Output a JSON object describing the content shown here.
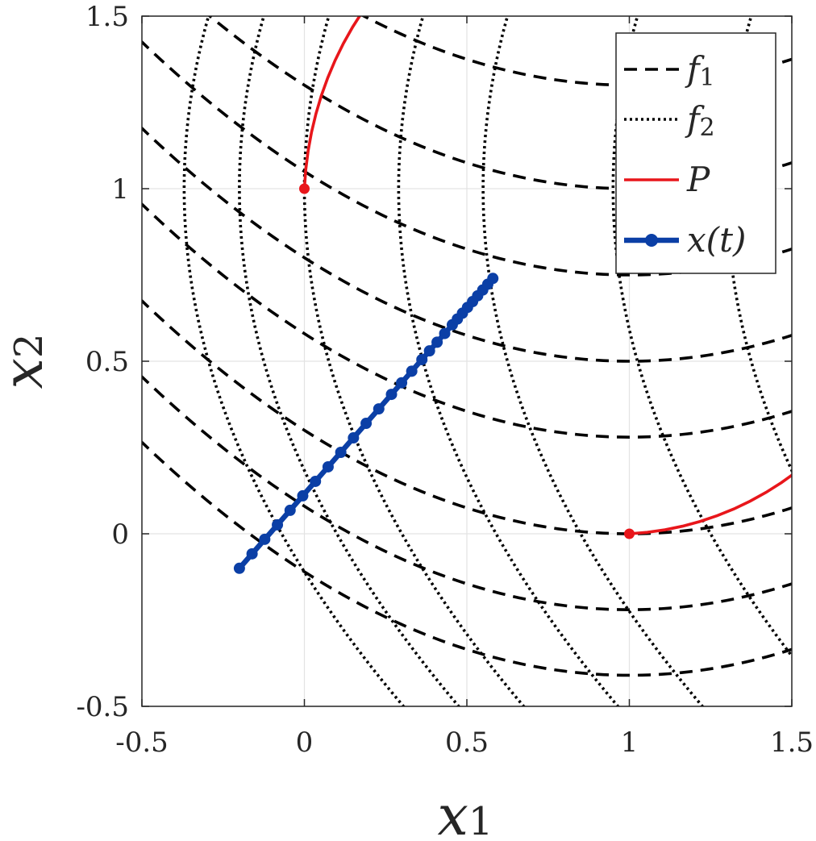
{
  "chart_data": {
    "type": "line",
    "title": "",
    "xlabel": {
      "base": "x",
      "sub": "1"
    },
    "ylabel": {
      "base": "x",
      "sub": "2"
    },
    "xlim": [
      -0.5,
      1.5
    ],
    "ylim": [
      -0.5,
      1.5
    ],
    "grid": true,
    "legend_position": "top-right",
    "x_ticks": [
      -0.5,
      0,
      0.5,
      1,
      1.5
    ],
    "y_ticks": [
      -0.5,
      0,
      0.5,
      1,
      1.5
    ],
    "x_tick_labels": [
      "-0.5",
      "0",
      "0.5",
      "1",
      "1.5"
    ],
    "y_tick_labels": [
      "-0.5",
      "0",
      "0.5",
      "1",
      "1.5"
    ],
    "colors": {
      "f1": "#000000",
      "f2": "#000000",
      "P": "#e8161b",
      "x_t": "#0b3fa6",
      "grid": "#e3e3e3",
      "axis": "#262626"
    },
    "contours": {
      "f1": {
        "center": [
          1,
          0
        ],
        "style": "dashed",
        "y_at_center": [
          1.3,
          1.0,
          0.75,
          0.5,
          0.28,
          0.0,
          -0.22,
          -0.41
        ]
      },
      "f2": {
        "center": [
          0,
          1
        ],
        "style": "dotted",
        "x_at_center": [
          -0.37,
          -0.2,
          0.0,
          0.29,
          0.55,
          0.95,
          1.3
        ]
      }
    },
    "series": [
      {
        "name": "P",
        "style": "solid",
        "center": [
          0.955,
          0.955
        ],
        "angle_range_deg": [
          180,
          270
        ],
        "start": [
          0,
          1
        ],
        "end": [
          1,
          0
        ]
      },
      {
        "name": "x(t)",
        "style": "solid-markers",
        "start": [
          -0.2,
          -0.1
        ],
        "end": [
          0.58,
          0.74
        ],
        "t": [
          0,
          0.05,
          0.1,
          0.15,
          0.2,
          0.25,
          0.3,
          0.35,
          0.4,
          0.45,
          0.5,
          0.55,
          0.6,
          0.64,
          0.68,
          0.72,
          0.75,
          0.78,
          0.81,
          0.84,
          0.86,
          0.88,
          0.9,
          0.92,
          0.94,
          0.96,
          0.98,
          1.0
        ]
      }
    ],
    "legend": [
      {
        "key": "f1",
        "label": "f",
        "sub": "1",
        "style": "dashed"
      },
      {
        "key": "f2",
        "label": "f",
        "sub": "2",
        "style": "dotted"
      },
      {
        "key": "P",
        "label": "P",
        "sub": "",
        "style": "solid"
      },
      {
        "key": "x_t",
        "label": "x(t)",
        "sub": "",
        "style": "solid-markers"
      }
    ]
  }
}
